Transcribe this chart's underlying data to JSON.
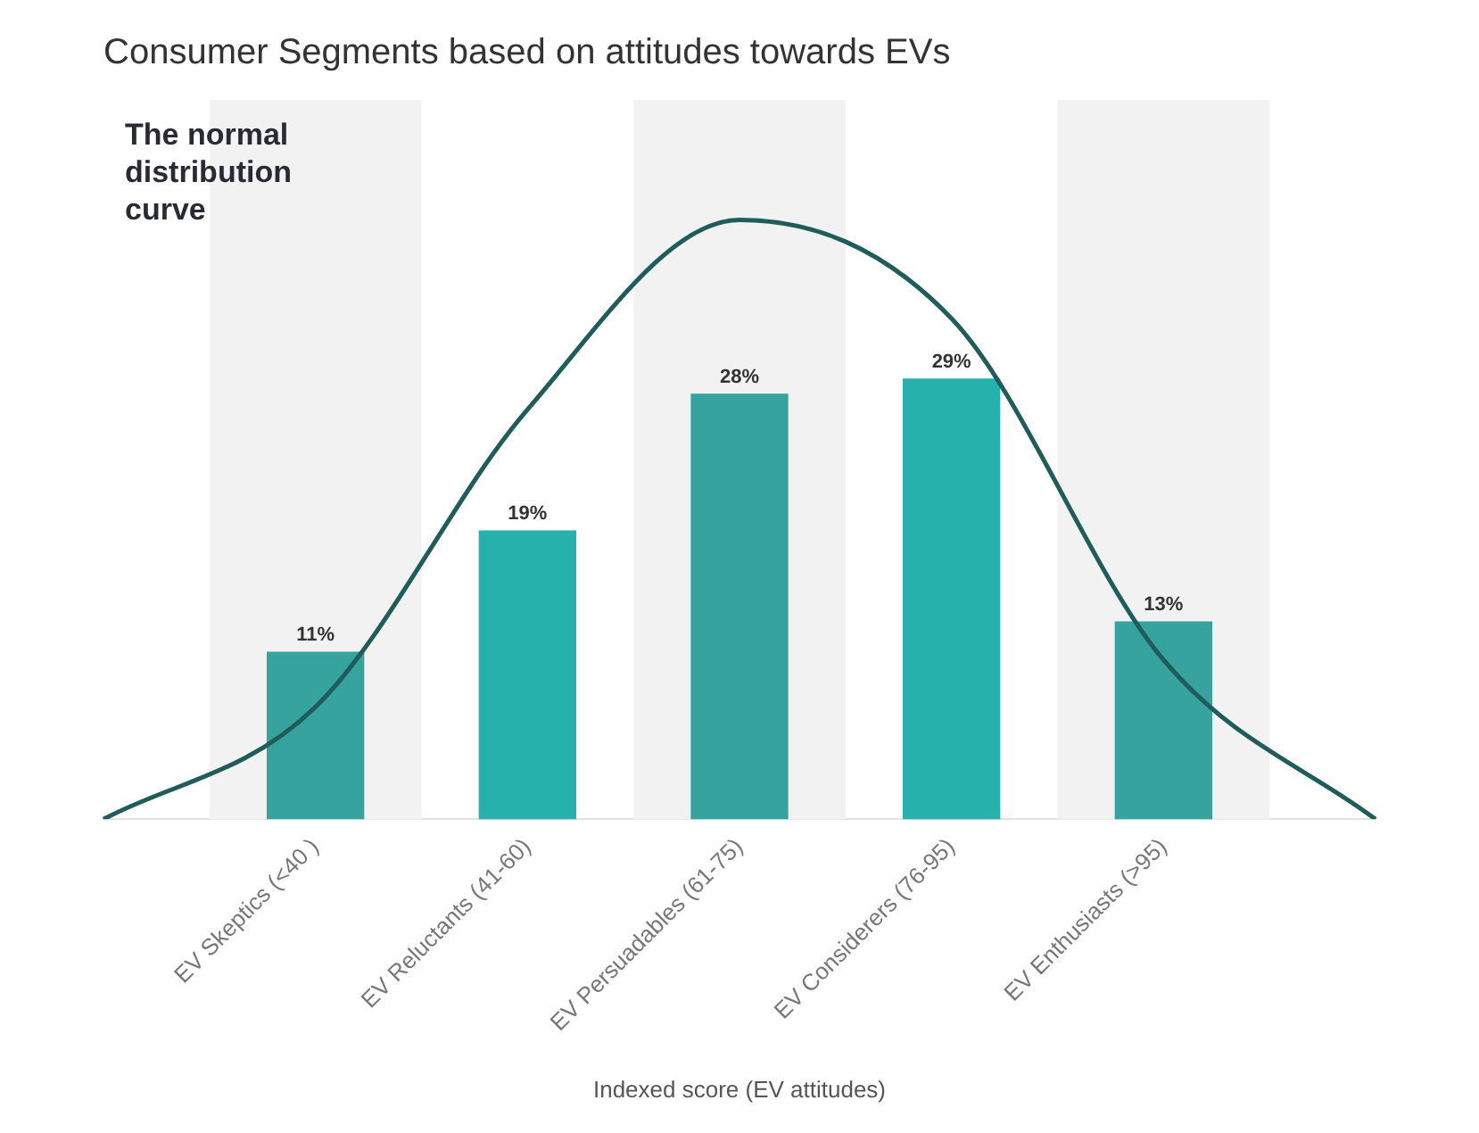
{
  "chart_data": {
    "type": "bar",
    "title": "Consumer Segments based on attitudes towards EVs",
    "xlabel": "Indexed score (EV attitudes)",
    "annotations": [
      "The normal distribution curve"
    ],
    "categories": [
      null,
      "EV Skeptics (<40 )",
      "EV Reluctants (41-60)",
      "EV Persuadables (61-75)",
      "EV Considerers (76-95)",
      "EV Enthusiasts (>95)",
      null
    ],
    "series": [
      {
        "colors": [
          null,
          "#36a39f",
          "#27b1ac",
          "#36a39f",
          "#27b1ac",
          "#36a39f",
          null
        ],
        "values": [
          null,
          11,
          19,
          28,
          29,
          13,
          null
        ],
        "value_labels": [
          null,
          "11%",
          "19%",
          "28%",
          "29%",
          "13%",
          null
        ]
      },
      {
        "type": "line",
        "color": "#1f5c5a",
        "values": [
          0,
          7.4,
          27,
          39.5,
          33,
          10.5,
          0
        ]
      }
    ],
    "grid": false,
    "legend": false
  }
}
